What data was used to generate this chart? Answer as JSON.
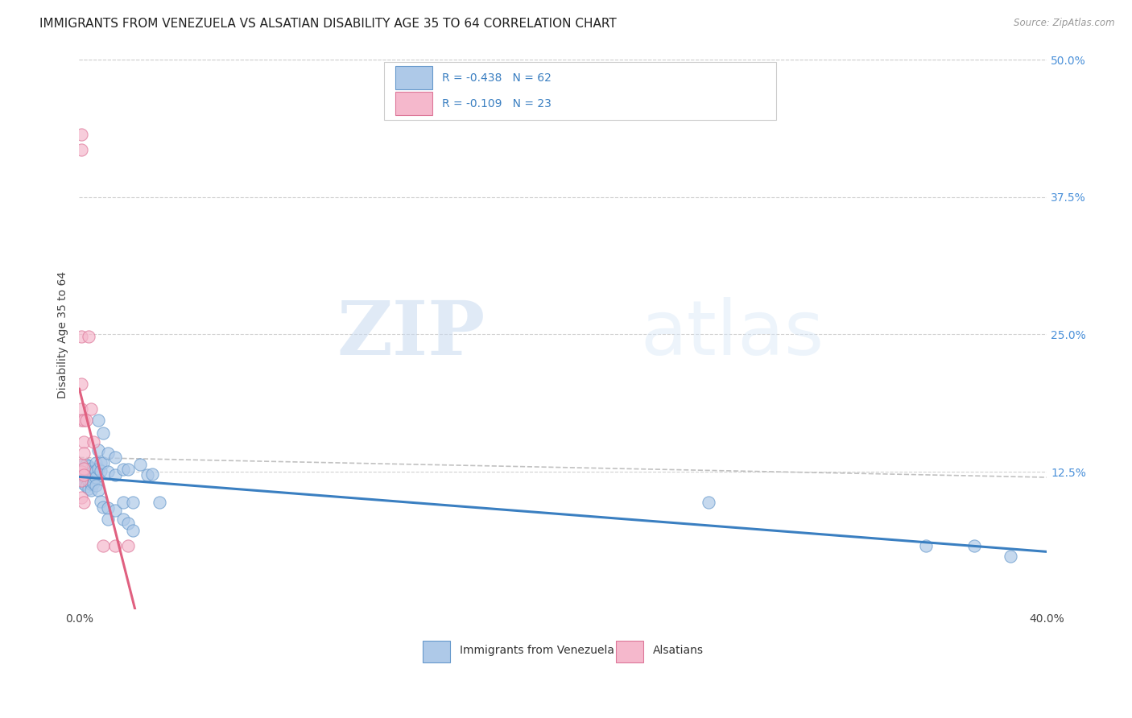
{
  "title": "IMMIGRANTS FROM VENEZUELA VS ALSATIAN DISABILITY AGE 35 TO 64 CORRELATION CHART",
  "source": "Source: ZipAtlas.com",
  "ylabel": "Disability Age 35 to 64",
  "watermark_text": "ZIP",
  "watermark_text2": "atlas",
  "background_color": "#ffffff",
  "grid_color": "#cccccc",
  "blue_scatter_color": "#aec9e8",
  "pink_scatter_color": "#f5b8cc",
  "blue_line_color": "#3a7fc1",
  "pink_line_color": "#e06080",
  "dashed_line_color": "#bbbbbb",
  "xlim": [
    0.0,
    0.4
  ],
  "ylim": [
    0.0,
    0.5
  ],
  "ytick_vals": [
    0.125,
    0.25,
    0.375,
    0.5
  ],
  "ytick_labels": [
    "12.5%",
    "25.0%",
    "37.5%",
    "50.0%"
  ],
  "xtick_vals": [
    0.0,
    0.4
  ],
  "xtick_labels": [
    "0.0%",
    "40.0%"
  ],
  "legend_entries": [
    {
      "label": "Immigrants from Venezuela",
      "R": "-0.438",
      "N": "62"
    },
    {
      "label": "Alsatians",
      "R": "-0.109",
      "N": "23"
    }
  ],
  "blue_scatter_color_fill": "#aec9e8",
  "blue_scatter_color_edge": "#6699cc",
  "pink_scatter_color_fill": "#f5b8cc",
  "pink_scatter_color_edge": "#dd7799",
  "blue_points": [
    [
      0.001,
      0.13
    ],
    [
      0.001,
      0.125
    ],
    [
      0.001,
      0.122
    ],
    [
      0.001,
      0.118
    ],
    [
      0.002,
      0.128
    ],
    [
      0.002,
      0.124
    ],
    [
      0.002,
      0.118
    ],
    [
      0.002,
      0.114
    ],
    [
      0.003,
      0.132
    ],
    [
      0.003,
      0.128
    ],
    [
      0.003,
      0.122
    ],
    [
      0.003,
      0.118
    ],
    [
      0.003,
      0.112
    ],
    [
      0.004,
      0.13
    ],
    [
      0.004,
      0.126
    ],
    [
      0.004,
      0.12
    ],
    [
      0.004,
      0.116
    ],
    [
      0.004,
      0.11
    ],
    [
      0.005,
      0.128
    ],
    [
      0.005,
      0.124
    ],
    [
      0.005,
      0.118
    ],
    [
      0.005,
      0.114
    ],
    [
      0.005,
      0.108
    ],
    [
      0.006,
      0.126
    ],
    [
      0.006,
      0.12
    ],
    [
      0.006,
      0.115
    ],
    [
      0.007,
      0.133
    ],
    [
      0.007,
      0.126
    ],
    [
      0.007,
      0.12
    ],
    [
      0.007,
      0.113
    ],
    [
      0.008,
      0.172
    ],
    [
      0.008,
      0.145
    ],
    [
      0.008,
      0.128
    ],
    [
      0.008,
      0.108
    ],
    [
      0.009,
      0.133
    ],
    [
      0.009,
      0.126
    ],
    [
      0.009,
      0.098
    ],
    [
      0.01,
      0.16
    ],
    [
      0.01,
      0.133
    ],
    [
      0.01,
      0.093
    ],
    [
      0.012,
      0.142
    ],
    [
      0.012,
      0.125
    ],
    [
      0.012,
      0.092
    ],
    [
      0.012,
      0.082
    ],
    [
      0.015,
      0.138
    ],
    [
      0.015,
      0.122
    ],
    [
      0.015,
      0.09
    ],
    [
      0.018,
      0.127
    ],
    [
      0.018,
      0.097
    ],
    [
      0.018,
      0.082
    ],
    [
      0.02,
      0.127
    ],
    [
      0.02,
      0.078
    ],
    [
      0.022,
      0.097
    ],
    [
      0.022,
      0.072
    ],
    [
      0.025,
      0.132
    ],
    [
      0.028,
      0.122
    ],
    [
      0.03,
      0.123
    ],
    [
      0.033,
      0.097
    ],
    [
      0.26,
      0.097
    ],
    [
      0.35,
      0.058
    ],
    [
      0.37,
      0.058
    ],
    [
      0.385,
      0.048
    ]
  ],
  "pink_points": [
    [
      0.001,
      0.432
    ],
    [
      0.001,
      0.418
    ],
    [
      0.001,
      0.248
    ],
    [
      0.001,
      0.205
    ],
    [
      0.001,
      0.182
    ],
    [
      0.001,
      0.172
    ],
    [
      0.001,
      0.132
    ],
    [
      0.001,
      0.125
    ],
    [
      0.001,
      0.117
    ],
    [
      0.001,
      0.102
    ],
    [
      0.002,
      0.172
    ],
    [
      0.002,
      0.152
    ],
    [
      0.002,
      0.142
    ],
    [
      0.002,
      0.128
    ],
    [
      0.002,
      0.122
    ],
    [
      0.002,
      0.097
    ],
    [
      0.003,
      0.172
    ],
    [
      0.004,
      0.248
    ],
    [
      0.005,
      0.182
    ],
    [
      0.006,
      0.152
    ],
    [
      0.01,
      0.058
    ],
    [
      0.015,
      0.058
    ],
    [
      0.02,
      0.058
    ]
  ],
  "title_fontsize": 11,
  "tick_fontsize": 10,
  "legend_fontsize": 10,
  "ylabel_fontsize": 10
}
